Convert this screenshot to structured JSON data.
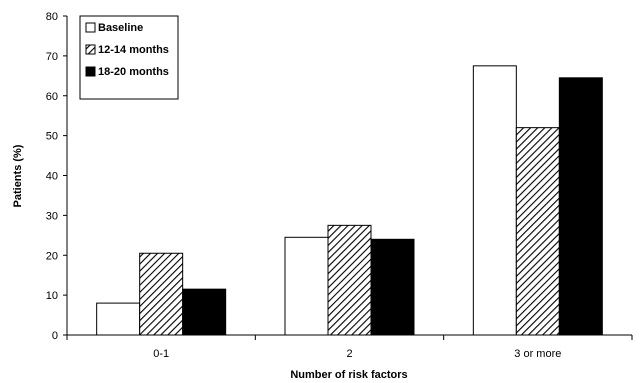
{
  "chart_data": {
    "type": "bar",
    "title": "",
    "xlabel": "Number of risk factors",
    "ylabel": "Patients (%)",
    "ylim": [
      0,
      80
    ],
    "yticks": [
      0,
      10,
      20,
      30,
      40,
      50,
      60,
      70,
      80
    ],
    "grid": false,
    "legend_position": "top-left",
    "categories": [
      "0-1",
      "2",
      "3 or more"
    ],
    "series": [
      {
        "name": "Baseline",
        "values": [
          8,
          24.5,
          67.5
        ],
        "fill": "white"
      },
      {
        "name": "12-14 months",
        "values": [
          20.5,
          27.5,
          52
        ],
        "fill": "hatched"
      },
      {
        "name": "18-20 months",
        "values": [
          11.5,
          24,
          64.5
        ],
        "fill": "black"
      }
    ]
  }
}
